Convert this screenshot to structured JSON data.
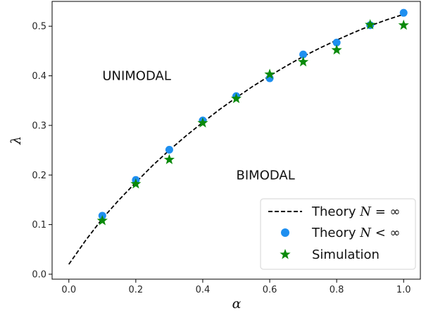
{
  "chart_data": {
    "type": "scatter",
    "xlabel": "α",
    "ylabel": "λ",
    "xlim": [
      -0.05,
      1.05
    ],
    "ylim": [
      -0.01,
      0.55
    ],
    "xticks": [
      0.0,
      0.2,
      0.4,
      0.6,
      0.8,
      1.0
    ],
    "xtick_labels": [
      "0.0",
      "0.2",
      "0.4",
      "0.6",
      "0.8",
      "1.0"
    ],
    "yticks": [
      0.0,
      0.1,
      0.2,
      0.3,
      0.4,
      0.5
    ],
    "ytick_labels": [
      "0.0",
      "0.1",
      "0.2",
      "0.3",
      "0.4",
      "0.5"
    ],
    "grid": false,
    "legend_position": "bottom-right",
    "annotations": [
      {
        "text": "UNIMODAL",
        "x": 0.1,
        "y": 0.4
      },
      {
        "text": "BIMODAL",
        "x": 0.5,
        "y": 0.2
      }
    ],
    "series": [
      {
        "name": "Theory N = ∞",
        "style": "dashed-line",
        "color": "#000000",
        "x": [
          0.0,
          0.05,
          0.1,
          0.15,
          0.2,
          0.25,
          0.3,
          0.35,
          0.4,
          0.45,
          0.5,
          0.55,
          0.6,
          0.65,
          0.7,
          0.75,
          0.8,
          0.85,
          0.9,
          0.95,
          1.0
        ],
        "y": [
          0.02,
          0.068,
          0.112,
          0.15,
          0.185,
          0.219,
          0.25,
          0.279,
          0.306,
          0.332,
          0.356,
          0.379,
          0.4,
          0.42,
          0.439,
          0.456,
          0.472,
          0.487,
          0.501,
          0.513,
          0.524
        ]
      },
      {
        "name": "Theory N < ∞",
        "style": "circle-marker",
        "color": "#1e8ff0",
        "x": [
          0.1,
          0.2,
          0.3,
          0.4,
          0.5,
          0.6,
          0.7,
          0.8,
          0.9,
          1.0
        ],
        "y": [
          0.118,
          0.19,
          0.251,
          0.31,
          0.359,
          0.395,
          0.443,
          0.467,
          0.502,
          0.527
        ]
      },
      {
        "name": "Simulation",
        "style": "star-marker",
        "color": "#0a8a0a",
        "x": [
          0.1,
          0.2,
          0.3,
          0.4,
          0.5,
          0.6,
          0.7,
          0.8,
          0.9,
          1.0
        ],
        "y": [
          0.108,
          0.182,
          0.231,
          0.305,
          0.354,
          0.403,
          0.428,
          0.452,
          0.503,
          0.502
        ]
      }
    ]
  },
  "legend": {
    "items": [
      {
        "prefix": "Theory ",
        "var": "N",
        "suffix": " = ∞"
      },
      {
        "prefix": "Theory ",
        "var": "N",
        "suffix": " < ∞"
      },
      {
        "prefix": "Simulation",
        "var": "",
        "suffix": ""
      }
    ]
  }
}
